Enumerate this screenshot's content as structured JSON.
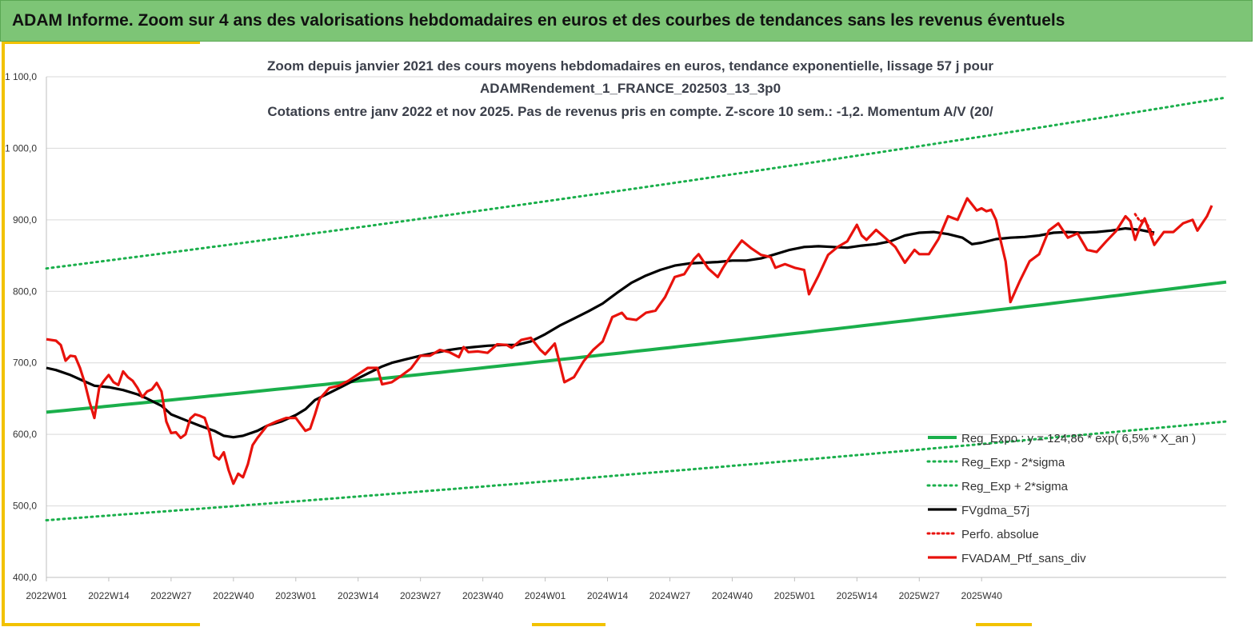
{
  "banner": {
    "title": "ADAM Informe. Zoom sur 4 ans des valorisations hebdomadaires en euros et des courbes de tendances sans les revenus éventuels"
  },
  "chart_data": {
    "type": "line",
    "title_lines": [
      "Zoom depuis janvier 2021 des cours moyens hebdomadaires  en euros, tendance exponentielle, lissage 57 j pour",
      "ADAMRendement_1_FRANCE_202503_13_3p0",
      "Cotations entre janv 2022 et nov 2025. Pas de revenus pris en compte. Z-score 10 sem.: -1,2. Momentum A/V (20/"
    ],
    "ylim": [
      400,
      1100
    ],
    "y_ticks": [
      "1 100,0",
      "1 000,0",
      "900,0",
      "800,0",
      "700,0",
      "600,0",
      "500,0",
      "400,0"
    ],
    "x_ticks": [
      "2022W01",
      "2022W14",
      "2022W27",
      "2022W40",
      "2023W01",
      "2023W14",
      "2023W27",
      "2023W40",
      "2024W01",
      "2024W14",
      "2024W27",
      "2024W40",
      "2025W01",
      "2025W14",
      "2025W27",
      "2025W40"
    ],
    "grid": true,
    "legend_position": "bottom-right",
    "colors": {
      "green": "#1aaf4b",
      "black": "#000000",
      "red": "#e8120c"
    },
    "series": [
      {
        "name": "Reg_Expo : y = 124,86 * exp( 6,5% *  X_an )",
        "style": "solid-green",
        "start": 631,
        "end": 813
      },
      {
        "name": "Reg_Exp - 2*sigma",
        "style": "dotted-green",
        "start": 480,
        "end": 618
      },
      {
        "name": "Reg_Exp + 2*sigma",
        "style": "dotted-green",
        "start": 832,
        "end": 1071
      },
      {
        "name": "FVgdma_57j",
        "style": "solid-black",
        "points": [
          [
            1,
            693
          ],
          [
            3,
            690
          ],
          [
            6,
            683
          ],
          [
            9,
            674
          ],
          [
            11,
            668
          ],
          [
            14,
            666
          ],
          [
            17,
            662
          ],
          [
            20,
            656
          ],
          [
            22,
            650
          ],
          [
            25,
            640
          ],
          [
            27,
            628
          ],
          [
            30,
            620
          ],
          [
            33,
            612
          ],
          [
            36,
            605
          ],
          [
            38,
            598
          ],
          [
            40,
            596
          ],
          [
            42,
            598
          ],
          [
            45,
            605
          ],
          [
            47,
            612
          ],
          [
            50,
            618
          ],
          [
            53,
            627
          ],
          [
            55,
            635
          ],
          [
            57,
            648
          ],
          [
            60,
            658
          ],
          [
            63,
            668
          ],
          [
            65,
            675
          ],
          [
            68,
            685
          ],
          [
            71,
            695
          ],
          [
            73,
            700
          ],
          [
            76,
            705
          ],
          [
            79,
            710
          ],
          [
            82,
            714
          ],
          [
            85,
            718
          ],
          [
            87,
            720
          ],
          [
            90,
            722
          ],
          [
            93,
            724
          ],
          [
            96,
            725
          ],
          [
            99,
            725
          ],
          [
            102,
            730
          ],
          [
            105,
            740
          ],
          [
            108,
            752
          ],
          [
            111,
            762
          ],
          [
            114,
            772
          ],
          [
            117,
            783
          ],
          [
            120,
            798
          ],
          [
            123,
            812
          ],
          [
            126,
            822
          ],
          [
            129,
            830
          ],
          [
            132,
            836
          ],
          [
            135,
            839
          ],
          [
            138,
            840
          ],
          [
            141,
            841
          ],
          [
            144,
            843
          ],
          [
            147,
            843
          ],
          [
            150,
            846
          ],
          [
            153,
            852
          ],
          [
            156,
            858
          ],
          [
            159,
            862
          ],
          [
            162,
            863
          ],
          [
            165,
            862
          ],
          [
            168,
            861
          ],
          [
            171,
            864
          ],
          [
            174,
            866
          ],
          [
            177,
            870
          ],
          [
            180,
            878
          ],
          [
            183,
            882
          ],
          [
            186,
            883
          ],
          [
            189,
            880
          ],
          [
            192,
            875
          ],
          [
            194,
            866
          ],
          [
            196,
            868
          ],
          [
            199,
            873
          ],
          [
            202,
            875
          ],
          [
            205,
            876
          ],
          [
            208,
            878
          ],
          [
            211,
            882
          ],
          [
            214,
            883
          ],
          [
            217,
            882
          ],
          [
            220,
            883
          ],
          [
            223,
            885
          ],
          [
            226,
            888
          ],
          [
            229,
            886
          ],
          [
            232,
            882
          ]
        ]
      },
      {
        "name": "Perfo. absolue",
        "style": "dotted-red",
        "points": [
          [
            228,
            908
          ],
          [
            229,
            898
          ],
          [
            230,
            900
          ],
          [
            231,
            888
          ],
          [
            232,
            876
          ]
        ]
      },
      {
        "name": "FVADAM_Ptf_sans_div",
        "style": "solid-red",
        "points": [
          [
            1,
            733
          ],
          [
            3,
            731
          ],
          [
            4,
            725
          ],
          [
            5,
            703
          ],
          [
            6,
            710
          ],
          [
            7,
            709
          ],
          [
            8,
            693
          ],
          [
            9,
            672
          ],
          [
            10,
            645
          ],
          [
            11,
            623
          ],
          [
            12,
            665
          ],
          [
            13,
            675
          ],
          [
            14,
            683
          ],
          [
            15,
            673
          ],
          [
            16,
            669
          ],
          [
            17,
            688
          ],
          [
            18,
            680
          ],
          [
            19,
            675
          ],
          [
            20,
            665
          ],
          [
            21,
            652
          ],
          [
            22,
            660
          ],
          [
            23,
            663
          ],
          [
            24,
            672
          ],
          [
            25,
            660
          ],
          [
            26,
            618
          ],
          [
            27,
            602
          ],
          [
            28,
            603
          ],
          [
            29,
            595
          ],
          [
            30,
            600
          ],
          [
            31,
            622
          ],
          [
            32,
            628
          ],
          [
            33,
            626
          ],
          [
            34,
            623
          ],
          [
            35,
            603
          ],
          [
            36,
            570
          ],
          [
            37,
            565
          ],
          [
            38,
            575
          ],
          [
            39,
            550
          ],
          [
            40,
            531
          ],
          [
            41,
            545
          ],
          [
            42,
            540
          ],
          [
            43,
            558
          ],
          [
            44,
            585
          ],
          [
            45,
            595
          ],
          [
            47,
            612
          ],
          [
            49,
            618
          ],
          [
            51,
            623
          ],
          [
            53,
            623
          ],
          [
            55,
            605
          ],
          [
            56,
            608
          ],
          [
            57,
            628
          ],
          [
            58,
            650
          ],
          [
            60,
            665
          ],
          [
            62,
            668
          ],
          [
            64,
            675
          ],
          [
            66,
            684
          ],
          [
            68,
            693
          ],
          [
            70,
            693
          ],
          [
            71,
            670
          ],
          [
            73,
            673
          ],
          [
            75,
            682
          ],
          [
            77,
            692
          ],
          [
            79,
            710
          ],
          [
            81,
            710
          ],
          [
            83,
            718
          ],
          [
            85,
            715
          ],
          [
            87,
            708
          ],
          [
            88,
            722
          ],
          [
            89,
            715
          ],
          [
            91,
            716
          ],
          [
            93,
            714
          ],
          [
            95,
            726
          ],
          [
            97,
            725
          ],
          [
            98,
            721
          ],
          [
            100,
            732
          ],
          [
            102,
            735
          ],
          [
            104,
            718
          ],
          [
            105,
            712
          ],
          [
            107,
            727
          ],
          [
            109,
            673
          ],
          [
            111,
            680
          ],
          [
            113,
            702
          ],
          [
            115,
            718
          ],
          [
            117,
            730
          ],
          [
            119,
            764
          ],
          [
            121,
            770
          ],
          [
            122,
            762
          ],
          [
            124,
            760
          ],
          [
            126,
            770
          ],
          [
            128,
            773
          ],
          [
            130,
            792
          ],
          [
            132,
            820
          ],
          [
            134,
            824
          ],
          [
            136,
            845
          ],
          [
            137,
            852
          ],
          [
            139,
            832
          ],
          [
            141,
            820
          ],
          [
            142,
            832
          ],
          [
            144,
            853
          ],
          [
            146,
            871
          ],
          [
            148,
            860
          ],
          [
            150,
            851
          ],
          [
            152,
            848
          ],
          [
            153,
            833
          ],
          [
            155,
            838
          ],
          [
            157,
            833
          ],
          [
            159,
            830
          ],
          [
            160,
            796
          ],
          [
            162,
            822
          ],
          [
            164,
            851
          ],
          [
            166,
            862
          ],
          [
            168,
            870
          ],
          [
            170,
            893
          ],
          [
            171,
            878
          ],
          [
            172,
            872
          ],
          [
            174,
            886
          ],
          [
            176,
            874
          ],
          [
            178,
            862
          ],
          [
            180,
            840
          ],
          [
            182,
            858
          ],
          [
            183,
            852
          ],
          [
            185,
            852
          ],
          [
            187,
            873
          ],
          [
            189,
            905
          ],
          [
            191,
            900
          ],
          [
            193,
            930
          ],
          [
            195,
            913
          ],
          [
            196,
            916
          ],
          [
            197,
            912
          ],
          [
            198,
            914
          ],
          [
            199,
            900
          ],
          [
            200,
            870
          ],
          [
            201,
            842
          ],
          [
            202,
            785
          ],
          [
            204,
            815
          ],
          [
            206,
            842
          ],
          [
            208,
            852
          ],
          [
            210,
            885
          ],
          [
            212,
            895
          ],
          [
            214,
            875
          ],
          [
            216,
            881
          ],
          [
            218,
            858
          ],
          [
            220,
            855
          ],
          [
            222,
            870
          ],
          [
            224,
            884
          ],
          [
            226,
            905
          ],
          [
            227,
            898
          ],
          [
            228,
            872
          ],
          [
            229,
            890
          ],
          [
            230,
            902
          ],
          [
            232,
            865
          ],
          [
            234,
            883
          ],
          [
            236,
            883
          ],
          [
            238,
            895
          ],
          [
            240,
            900
          ],
          [
            241,
            885
          ],
          [
            243,
            905
          ],
          [
            244,
            920
          ]
        ]
      }
    ]
  }
}
